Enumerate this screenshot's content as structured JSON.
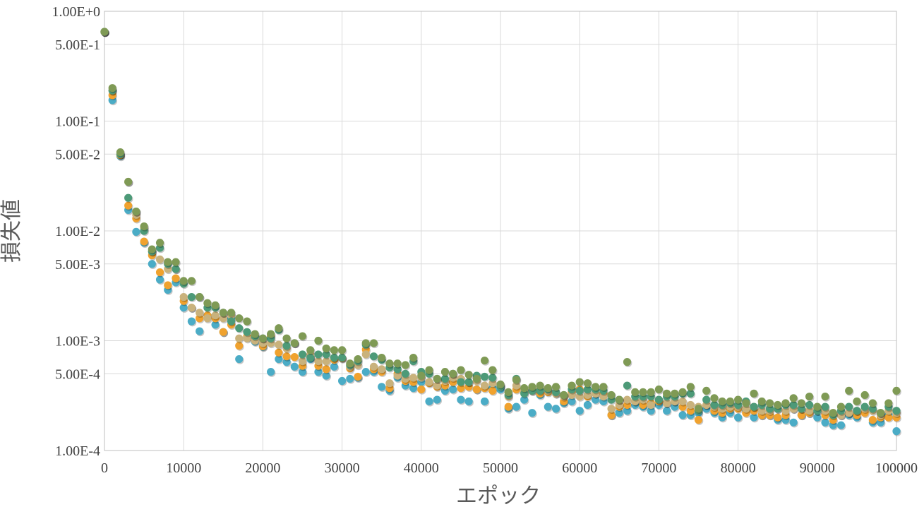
{
  "chart_data": {
    "type": "scatter",
    "title": "",
    "xlabel": "エポック",
    "ylabel": "損失値",
    "xlim": [
      0,
      100000
    ],
    "ylim": [
      0.0001,
      1.0
    ],
    "y_scale": "log",
    "grid": true,
    "legend": "none",
    "x_ticks": [
      0,
      10000,
      20000,
      30000,
      40000,
      50000,
      60000,
      70000,
      80000,
      90000,
      100000
    ],
    "x_tick_labels": [
      "0",
      "10000",
      "20000",
      "30000",
      "40000",
      "50000",
      "60000",
      "70000",
      "80000",
      "90000",
      "100000"
    ],
    "y_ticks": [
      1.0,
      0.5,
      0.1,
      0.05,
      0.01,
      0.005,
      0.001,
      0.0005,
      0.0001
    ],
    "y_tick_labels": [
      "1.00E+0",
      "5.00E-1",
      "1.00E-1",
      "5.00E-2",
      "1.00E-2",
      "5.00E-3",
      "1.00E-3",
      "5.00E-4",
      "1.00E-4"
    ],
    "x": [
      0,
      1000,
      2000,
      3000,
      4000,
      5000,
      6000,
      7000,
      8000,
      9000,
      10000,
      11000,
      12000,
      13000,
      14000,
      15000,
      16000,
      17000,
      18000,
      19000,
      20000,
      21000,
      22000,
      23000,
      24000,
      25000,
      26000,
      27000,
      28000,
      29000,
      30000,
      31000,
      32000,
      33000,
      34000,
      35000,
      36000,
      37000,
      38000,
      39000,
      40000,
      41000,
      42000,
      43000,
      44000,
      45000,
      46000,
      47000,
      48000,
      49000,
      50000,
      51000,
      52000,
      53000,
      54000,
      55000,
      56000,
      57000,
      58000,
      59000,
      60000,
      61000,
      62000,
      63000,
      64000,
      65000,
      66000,
      67000,
      68000,
      69000,
      70000,
      71000,
      72000,
      73000,
      74000,
      75000,
      76000,
      77000,
      78000,
      79000,
      80000,
      81000,
      82000,
      83000,
      84000,
      85000,
      86000,
      87000,
      88000,
      89000,
      90000,
      91000,
      92000,
      93000,
      94000,
      95000,
      96000,
      97000,
      98000,
      99000,
      100000
    ],
    "series": [
      {
        "color": "#4bacc6",
        "values": [
          0.65,
          0.155,
          0.048,
          0.0155,
          0.0098,
          0.0078,
          0.005,
          0.0036,
          0.0029,
          0.0034,
          0.002,
          0.0015,
          0.00122,
          0.0017,
          0.0014,
          0.0012,
          0.0016,
          0.00068,
          0.00108,
          0.00098,
          0.00088,
          0.00052,
          0.00068,
          0.00064,
          0.00058,
          0.00052,
          0.00068,
          0.00052,
          0.00048,
          0.00058,
          0.00043,
          0.00045,
          0.00046,
          0.00052,
          0.00052,
          0.00038,
          0.00035,
          0.00046,
          0.00039,
          0.00037,
          0.00042,
          0.00028,
          0.00029,
          0.00035,
          0.00036,
          0.00029,
          0.00028,
          0.00036,
          0.00028,
          0.00037,
          0.00036,
          0.00024,
          0.00025,
          0.00029,
          0.00022,
          0.00032,
          0.00025,
          0.00024,
          0.00027,
          0.00028,
          0.00023,
          0.00026,
          0.00029,
          0.00028,
          0.00021,
          0.00022,
          0.00023,
          0.00026,
          0.00025,
          0.00023,
          0.00026,
          0.00023,
          0.00025,
          0.00021,
          0.00021,
          0.00022,
          0.00024,
          0.00022,
          0.0002,
          0.00022,
          0.0002,
          0.00023,
          0.0002,
          0.00021,
          0.00021,
          0.00019,
          0.00019,
          0.00018,
          0.00021,
          0.00022,
          0.0002,
          0.00018,
          0.00017,
          0.00017,
          0.00021,
          0.0002,
          0.00024,
          0.00018,
          0.00018,
          0.00021,
          0.00015
        ]
      },
      {
        "color": "#f0a22e",
        "values": [
          0.65,
          0.172,
          0.049,
          0.017,
          0.013,
          0.008,
          0.006,
          0.0042,
          0.0032,
          0.0037,
          0.0023,
          0.002,
          0.0016,
          0.0017,
          0.0016,
          0.0012,
          0.0014,
          0.0009,
          0.00109,
          0.0011,
          0.00089,
          0.0011,
          0.00078,
          0.00072,
          0.00071,
          0.00059,
          0.00071,
          0.00059,
          0.00055,
          0.00067,
          0.00069,
          0.00056,
          0.00047,
          0.00083,
          0.00055,
          0.00052,
          0.00037,
          0.0005,
          0.00043,
          0.00042,
          0.00036,
          0.00041,
          0.00038,
          0.00039,
          0.00042,
          0.00037,
          0.00038,
          0.00036,
          0.00037,
          0.00035,
          0.00039,
          0.00025,
          0.00036,
          0.00034,
          0.00035,
          0.00033,
          0.00034,
          0.00033,
          0.00028,
          0.00034,
          0.00036,
          0.00031,
          0.00033,
          0.00033,
          0.00021,
          0.00025,
          0.00026,
          0.00028,
          0.00026,
          0.00027,
          0.00028,
          0.00027,
          0.00028,
          0.00025,
          0.00023,
          0.00019,
          0.00026,
          0.00023,
          0.00022,
          0.00024,
          0.00024,
          0.00022,
          0.00023,
          0.00021,
          0.00021,
          0.0002,
          0.00021,
          0.00024,
          0.00021,
          0.00022,
          0.00024,
          0.00021,
          0.00019,
          0.00021,
          0.00022,
          0.00021,
          0.00022,
          0.00019,
          0.0002,
          0.0002,
          0.0002
        ]
      },
      {
        "color": "#c9b27c",
        "values": [
          0.65,
          0.19,
          0.05,
          0.028,
          0.014,
          0.0105,
          0.0065,
          0.0055,
          0.0045,
          0.0045,
          0.0025,
          0.002,
          0.0018,
          0.0016,
          0.0017,
          0.0016,
          0.0017,
          0.00105,
          0.00105,
          0.001,
          0.00095,
          0.00095,
          0.00092,
          0.00085,
          0.00095,
          0.00065,
          0.00075,
          0.00065,
          0.00065,
          0.0007,
          0.0007,
          0.00058,
          0.0006,
          0.00075,
          0.00058,
          0.00055,
          0.00041,
          0.00048,
          0.00045,
          0.00046,
          0.00046,
          0.00042,
          0.00039,
          0.00043,
          0.00046,
          0.00045,
          0.00042,
          0.00043,
          0.00039,
          0.00041,
          0.00039,
          0.00031,
          0.00039,
          0.00035,
          0.00036,
          0.00036,
          0.00035,
          0.00033,
          0.00031,
          0.00032,
          0.00031,
          0.00032,
          0.00033,
          0.00031,
          0.00024,
          0.00026,
          0.00029,
          0.00028,
          0.00029,
          0.00026,
          0.00029,
          0.00027,
          0.00028,
          0.00028,
          0.00026,
          0.00025,
          0.00026,
          0.00025,
          0.00024,
          0.00025,
          0.00025,
          0.00024,
          0.00025,
          0.00023,
          0.00023,
          0.00024,
          0.00023,
          0.00024,
          0.00024,
          0.00023,
          0.00023,
          0.00023,
          0.00022,
          0.00021,
          0.00022,
          0.00023,
          0.00024,
          0.00023,
          0.00021,
          0.00023,
          0.00022
        ]
      },
      {
        "color": "#4d9a78",
        "values": [
          0.65,
          0.19,
          0.05,
          0.02,
          0.015,
          0.01,
          0.0065,
          0.007,
          0.005,
          0.0045,
          0.0033,
          0.0025,
          0.0025,
          0.002,
          0.002,
          0.0018,
          0.0015,
          0.0013,
          0.0012,
          0.0011,
          0.00105,
          0.00105,
          0.00125,
          0.0009,
          0.00095,
          0.00075,
          0.0007,
          0.00075,
          0.00075,
          0.0007,
          0.0007,
          0.0006,
          0.00065,
          0.00092,
          0.00072,
          0.00067,
          0.00057,
          0.00055,
          0.0005,
          0.00065,
          0.00052,
          0.0005,
          0.00045,
          0.00045,
          0.0005,
          0.00042,
          0.00042,
          0.00048,
          0.00047,
          0.00046,
          0.00038,
          0.00032,
          0.00045,
          0.00033,
          0.00035,
          0.00035,
          0.00036,
          0.00034,
          0.00032,
          0.00036,
          0.00035,
          0.00036,
          0.00036,
          0.00035,
          0.00029,
          0.00029,
          0.00039,
          0.00031,
          0.00031,
          0.00031,
          0.00029,
          0.00031,
          0.00031,
          0.00033,
          0.00033,
          0.00023,
          0.00029,
          0.00026,
          0.00026,
          0.00027,
          0.00026,
          0.00028,
          0.00025,
          0.00026,
          0.00024,
          0.00024,
          0.00026,
          0.00026,
          0.00024,
          0.00026,
          0.00023,
          0.00025,
          0.00021,
          0.00023,
          0.00025,
          0.00023,
          0.00025,
          0.00024,
          0.00022,
          0.00025,
          0.00023
        ]
      },
      {
        "color": "#7f9a55",
        "values": [
          0.65,
          0.2,
          0.052,
          0.028,
          0.015,
          0.011,
          0.0068,
          0.0078,
          0.0052,
          0.0052,
          0.0035,
          0.0035,
          0.0025,
          0.0022,
          0.0021,
          0.0018,
          0.0018,
          0.0016,
          0.0015,
          0.00115,
          0.00105,
          0.00115,
          0.0013,
          0.00105,
          0.00095,
          0.0011,
          0.00082,
          0.001,
          0.00085,
          0.00082,
          0.00082,
          0.00062,
          0.00068,
          0.00095,
          0.00095,
          0.0007,
          0.00062,
          0.00062,
          0.0006,
          0.0007,
          0.00048,
          0.00054,
          0.00045,
          0.00052,
          0.0005,
          0.00054,
          0.00049,
          0.00045,
          0.00066,
          0.00054,
          0.0004,
          0.00034,
          0.00044,
          0.00037,
          0.00038,
          0.00039,
          0.00037,
          0.00038,
          0.00032,
          0.00039,
          0.00042,
          0.00041,
          0.00038,
          0.00038,
          0.00032,
          0.00029,
          0.00064,
          0.00034,
          0.00034,
          0.00034,
          0.00036,
          0.00033,
          0.00033,
          0.00034,
          0.00038,
          0.00024,
          0.00035,
          0.0003,
          0.00028,
          0.00028,
          0.00029,
          0.00027,
          0.00033,
          0.00028,
          0.00027,
          0.00026,
          0.00027,
          0.0003,
          0.00027,
          0.00031,
          0.00025,
          0.00031,
          0.00022,
          0.00025,
          0.00035,
          0.00028,
          0.00032,
          0.00027,
          0.00022,
          0.00027,
          0.00035
        ]
      }
    ]
  }
}
